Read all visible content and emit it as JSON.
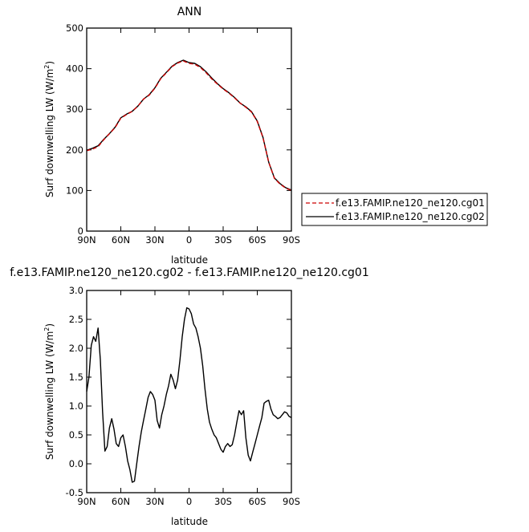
{
  "chart_data": [
    {
      "type": "line",
      "title": "ANN",
      "xlabel": "latitude",
      "ylabel": "Surf downwelling LW (W/m²)",
      "ylabel_main": "Surf downwelling LW (W/m",
      "ylabel_sup": "2",
      "ylabel_close": ")",
      "xlim": [
        90,
        -90
      ],
      "ylim": [
        0,
        500
      ],
      "x_ticks": [
        90,
        60,
        30,
        0,
        -30,
        -60,
        -90
      ],
      "x_tick_labels": [
        "90N",
        "60N",
        "30N",
        "0",
        "30S",
        "60S",
        "90S"
      ],
      "y_ticks": [
        0,
        100,
        200,
        300,
        400,
        500
      ],
      "y_tick_labels": [
        "0",
        "100",
        "200",
        "300",
        "400",
        "500"
      ],
      "legend_position": "right",
      "series": [
        {
          "name": "f.e13.FAMIP.ne120_ne120.cg01",
          "color": "#cc0000",
          "dash": true,
          "x": [
            90,
            85,
            80,
            75,
            70,
            65,
            60,
            55,
            50,
            45,
            40,
            35,
            30,
            25,
            20,
            15,
            10,
            5,
            0,
            -5,
            -10,
            -15,
            -20,
            -25,
            -30,
            -35,
            -40,
            -45,
            -50,
            -55,
            -60,
            -65,
            -70,
            -75,
            -80,
            -85,
            -90
          ],
          "values": [
            198,
            202,
            208,
            225,
            240,
            255,
            278,
            287,
            295,
            308,
            325,
            335,
            352,
            375,
            390,
            405,
            414,
            419,
            413,
            411,
            403,
            390,
            375,
            362,
            350,
            340,
            328,
            315,
            305,
            293,
            270,
            230,
            170,
            130,
            116,
            106,
            100
          ]
        },
        {
          "name": "f.e13.FAMIP.ne120_ne120.cg02",
          "color": "#000000",
          "dash": false,
          "x": [
            90,
            85,
            80,
            75,
            70,
            65,
            60,
            55,
            50,
            45,
            40,
            35,
            30,
            25,
            20,
            15,
            10,
            5,
            0,
            -5,
            -10,
            -15,
            -20,
            -25,
            -30,
            -35,
            -40,
            -45,
            -50,
            -55,
            -60,
            -65,
            -70,
            -75,
            -80,
            -85,
            -90
          ],
          "values": [
            199,
            204,
            210,
            226,
            240,
            256,
            279,
            288,
            295,
            308,
            325,
            336,
            353,
            376,
            391,
            406,
            415,
            421,
            415,
            413,
            405,
            392,
            377,
            363,
            351,
            341,
            329,
            315,
            306,
            294,
            271,
            231,
            170,
            131,
            117,
            107,
            101
          ]
        }
      ]
    },
    {
      "type": "line",
      "title": "f.e13.FAMIP.ne120_ne120.cg02 - f.e13.FAMIP.ne120_ne120.cg01",
      "xlabel": "latitude",
      "ylabel": "Surf downwelling LW (W/m²)",
      "ylabel_main": "Surf downwelling LW (W/m",
      "ylabel_sup": "2",
      "ylabel_close": ")",
      "xlim": [
        90,
        -90
      ],
      "ylim": [
        -0.5,
        3.0
      ],
      "x_ticks": [
        90,
        60,
        30,
        0,
        -30,
        -60,
        -90
      ],
      "x_tick_labels": [
        "90N",
        "60N",
        "30N",
        "0",
        "30S",
        "60S",
        "90S"
      ],
      "y_ticks": [
        -0.5,
        0.0,
        0.5,
        1.0,
        1.5,
        2.0,
        2.5,
        3.0
      ],
      "y_tick_labels": [
        "-0.5",
        "0.0",
        "0.5",
        "1.0",
        "1.5",
        "2.0",
        "2.5",
        "3.0"
      ],
      "series": [
        {
          "color": "#000000",
          "x": [
            90,
            88,
            86,
            84,
            82,
            80,
            78,
            76,
            74,
            72,
            70,
            68,
            66,
            64,
            62,
            60,
            58,
            56,
            54,
            52,
            50,
            48,
            46,
            44,
            42,
            40,
            38,
            36,
            34,
            32,
            30,
            28,
            26,
            24,
            22,
            20,
            18,
            16,
            14,
            12,
            10,
            8,
            6,
            4,
            2,
            0,
            -2,
            -4,
            -6,
            -8,
            -10,
            -12,
            -14,
            -16,
            -18,
            -20,
            -22,
            -24,
            -26,
            -28,
            -30,
            -32,
            -34,
            -36,
            -38,
            -40,
            -42,
            -44,
            -46,
            -48,
            -50,
            -52,
            -54,
            -56,
            -58,
            -60,
            -62,
            -64,
            -66,
            -68,
            -70,
            -72,
            -74,
            -76,
            -78,
            -80,
            -82,
            -84,
            -86,
            -88,
            -90
          ],
          "values": [
            1.25,
            1.5,
            2.05,
            2.2,
            2.12,
            2.35,
            1.8,
            0.9,
            0.22,
            0.3,
            0.62,
            0.78,
            0.6,
            0.35,
            0.3,
            0.45,
            0.5,
            0.3,
            0.05,
            -0.1,
            -0.32,
            -0.3,
            0.0,
            0.3,
            0.55,
            0.75,
            0.95,
            1.15,
            1.25,
            1.2,
            1.1,
            0.75,
            0.62,
            0.85,
            1.0,
            1.2,
            1.35,
            1.55,
            1.45,
            1.3,
            1.45,
            1.8,
            2.2,
            2.5,
            2.7,
            2.68,
            2.6,
            2.42,
            2.35,
            2.2,
            2.0,
            1.7,
            1.3,
            0.95,
            0.72,
            0.6,
            0.5,
            0.45,
            0.35,
            0.25,
            0.2,
            0.3,
            0.35,
            0.3,
            0.33,
            0.5,
            0.72,
            0.92,
            0.85,
            0.92,
            0.45,
            0.15,
            0.05,
            0.2,
            0.35,
            0.5,
            0.65,
            0.8,
            1.05,
            1.08,
            1.1,
            0.95,
            0.85,
            0.82,
            0.78,
            0.8,
            0.85,
            0.9,
            0.88,
            0.82,
            0.8
          ]
        }
      ]
    }
  ]
}
